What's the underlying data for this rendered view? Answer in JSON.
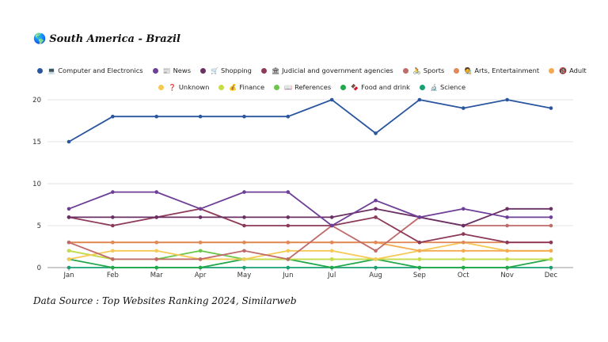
{
  "title": {
    "icon": "🌎",
    "text": "South America - Brazil"
  },
  "source": "Data Source : Top Websites Ranking 2024, Similarweb",
  "chart_data": {
    "type": "line",
    "categories": [
      "Jan",
      "Feb",
      "Mar",
      "Apr",
      "May",
      "Jun",
      "Jul",
      "Aug",
      "Sep",
      "Oct",
      "Nov",
      "Dec"
    ],
    "ylim": [
      0,
      20
    ],
    "yticks": [
      0,
      5,
      10,
      15,
      20
    ],
    "grid": true,
    "legend_placement": "top",
    "series": [
      {
        "name": "Computer and Electronics",
        "icon": "💻",
        "color": "#2a56a0",
        "values": [
          15,
          18,
          18,
          18,
          18,
          18,
          20,
          16,
          20,
          19,
          20,
          19
        ]
      },
      {
        "name": "News",
        "icon": "📰",
        "color": "#6e3f96",
        "values": [
          7,
          9,
          9,
          7,
          9,
          9,
          5,
          8,
          6,
          7,
          6,
          6
        ]
      },
      {
        "name": "Shopping",
        "icon": "🛒",
        "color": "#6a2f63",
        "values": [
          6,
          6,
          6,
          6,
          6,
          6,
          6,
          7,
          6,
          5,
          7,
          7
        ]
      },
      {
        "name": "Judicial and government agencies",
        "icon": "🏛",
        "color": "#8d3a5a",
        "values": [
          6,
          5,
          6,
          7,
          5,
          5,
          5,
          6,
          3,
          4,
          3,
          3
        ]
      },
      {
        "name": "Sports",
        "icon": "🚴",
        "color": "#c06a6a",
        "values": [
          3,
          1,
          1,
          1,
          2,
          1,
          5,
          2,
          6,
          5,
          5,
          5
        ]
      },
      {
        "name": "Arts, Entertainment",
        "icon": "🧑‍🎨",
        "color": "#e08a5a",
        "values": [
          3,
          3,
          3,
          3,
          3,
          3,
          3,
          3,
          3,
          3,
          3,
          3
        ]
      },
      {
        "name": "Adult",
        "icon": "🔞",
        "color": "#f5a94e",
        "values": [
          3,
          3,
          3,
          3,
          3,
          3,
          3,
          3,
          2,
          2,
          2,
          2
        ]
      },
      {
        "name": "Unknown",
        "icon": "❓",
        "color": "#f6c955",
        "values": [
          1,
          2,
          2,
          1,
          1,
          2,
          2,
          1,
          2,
          3,
          2,
          2
        ]
      },
      {
        "name": "Finance",
        "icon": "💰",
        "color": "#c8dc4a",
        "values": [
          2,
          1,
          1,
          1,
          1,
          1,
          1,
          1,
          1,
          1,
          1,
          1
        ]
      },
      {
        "name": "References",
        "icon": "📖",
        "color": "#6cc64a",
        "values": [
          2,
          1,
          1,
          2,
          1,
          1,
          1,
          1,
          1,
          1,
          1,
          1
        ]
      },
      {
        "name": "Food and drink",
        "icon": "🍫",
        "color": "#22a84a",
        "values": [
          1,
          0,
          0,
          0,
          1,
          1,
          0,
          1,
          0,
          0,
          0,
          1
        ]
      },
      {
        "name": "Science",
        "icon": "🔬",
        "color": "#18a070",
        "values": [
          0,
          0,
          0,
          0,
          0,
          0,
          0,
          0,
          0,
          0,
          0,
          0
        ]
      }
    ]
  }
}
